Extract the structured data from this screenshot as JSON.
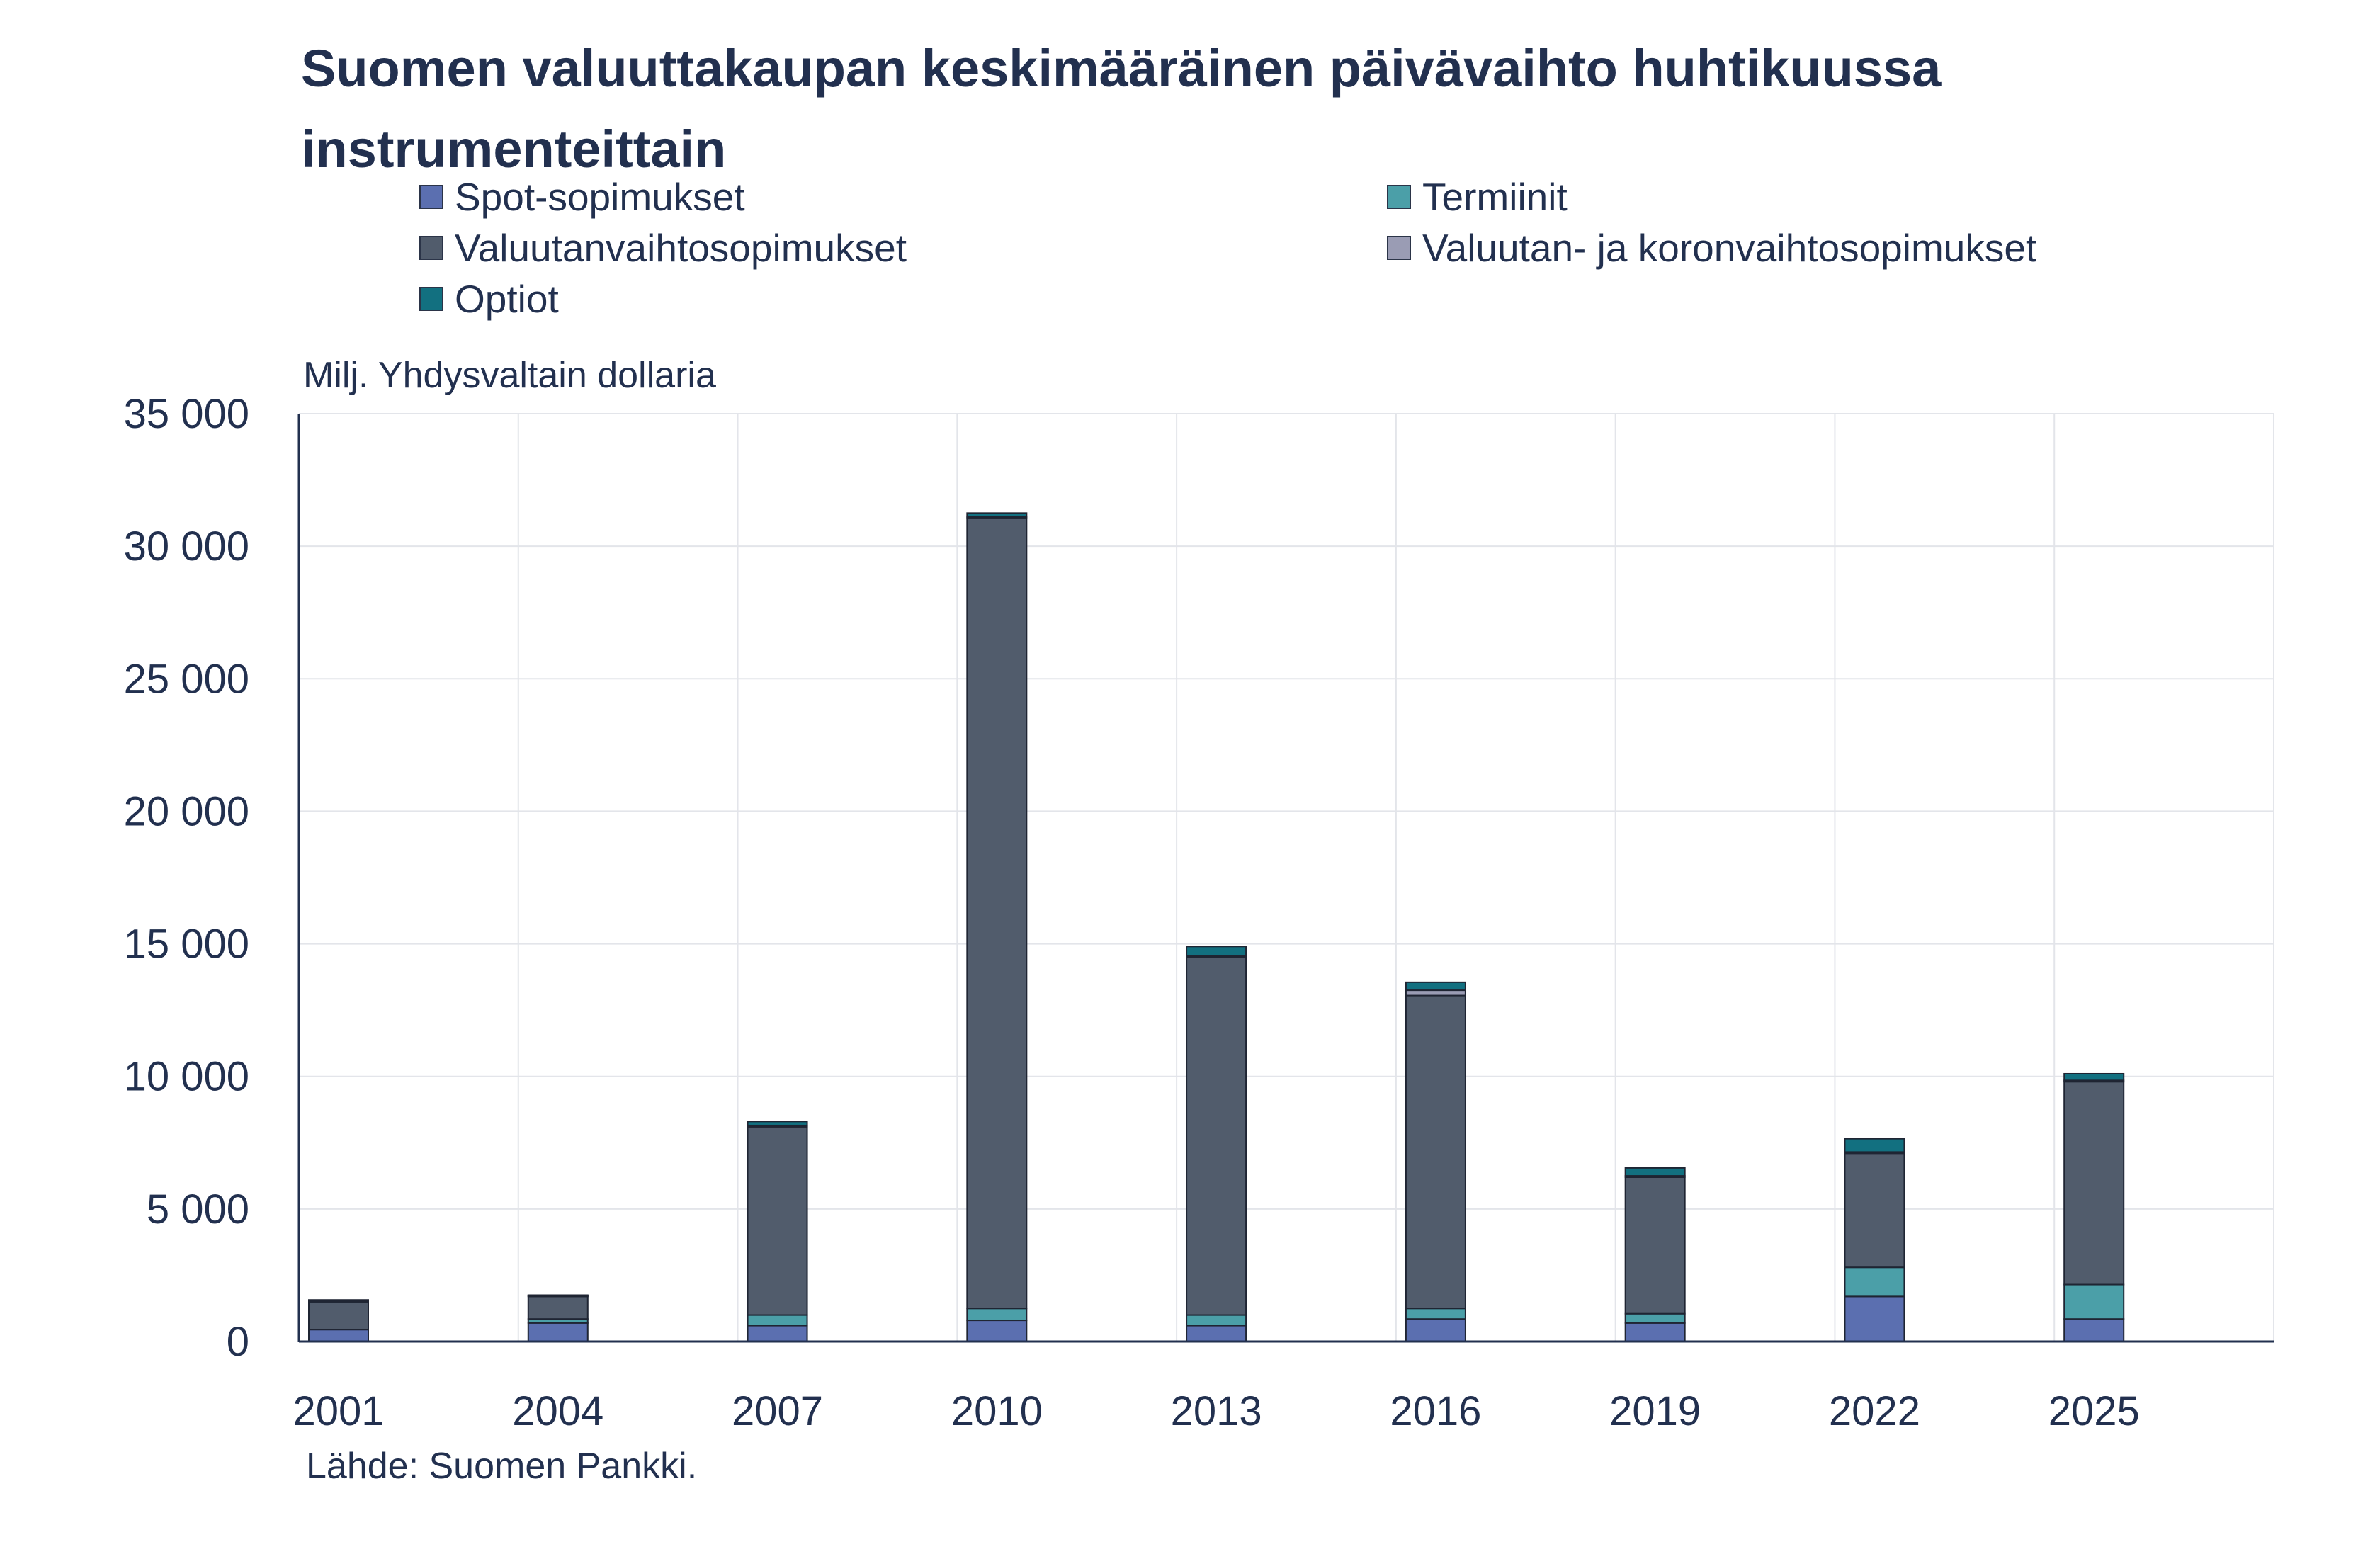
{
  "chart_data": {
    "type": "bar",
    "stacked": true,
    "title": "Suomen valuuttakaupan keskimääräinen päivävaihto huhtikuussa instrumenteittain",
    "ylabel": "Milj. Yhdysvaltain dollaria",
    "xlabel": "",
    "source": "Lähde: Suomen Pankki.",
    "ylim": [
      0,
      35000
    ],
    "yticks": [
      0,
      5000,
      10000,
      15000,
      20000,
      25000,
      30000,
      35000
    ],
    "ytick_labels": [
      "0",
      "5 000",
      "10 000",
      "15 000",
      "20 000",
      "25 000",
      "30 000",
      "35 000"
    ],
    "grid": true,
    "legend_position": "top",
    "categories": [
      "2001",
      "2004",
      "2007",
      "2010",
      "2013",
      "2016",
      "2019",
      "2022",
      "2025"
    ],
    "series": [
      {
        "name": "Spot-sopimukset",
        "color": "#5b6fb0",
        "values": [
          450,
          700,
          600,
          800,
          600,
          850,
          700,
          1700,
          850
        ]
      },
      {
        "name": "Termiinit",
        "color": "#4b9fa8",
        "values": [
          0,
          150,
          400,
          450,
          400,
          400,
          350,
          1100,
          1300
        ]
      },
      {
        "name": "Valuutanvaihtosopimukset",
        "color": "#515c6c",
        "values": [
          1050,
          850,
          7100,
          29800,
          13500,
          11800,
          5150,
          4300,
          7650
        ]
      },
      {
        "name": "Valuutan- ja koronvaihtosopimukset",
        "color": "#9a9cb4",
        "values": [
          20,
          20,
          50,
          50,
          50,
          200,
          50,
          50,
          50
        ]
      },
      {
        "name": "Optiot",
        "color": "#127080",
        "values": [
          50,
          30,
          150,
          150,
          350,
          300,
          300,
          500,
          250
        ]
      }
    ],
    "legend_layout": [
      {
        "series": 0,
        "col": 0,
        "row": 0
      },
      {
        "series": 1,
        "col": 1,
        "row": 0
      },
      {
        "series": 2,
        "col": 0,
        "row": 1
      },
      {
        "series": 3,
        "col": 1,
        "row": 1
      },
      {
        "series": 4,
        "col": 0,
        "row": 2
      }
    ]
  }
}
